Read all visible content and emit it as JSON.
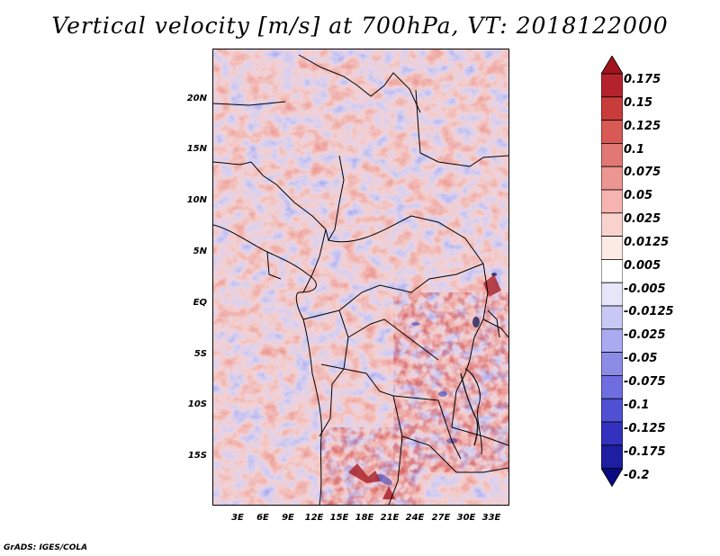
{
  "title": "Vertical velocity [m/s] at 700hPa, VT: 2018122000",
  "footer": "GrADS: IGES/COLA",
  "map": {
    "region": "Central Africa",
    "lat_labels": [
      "20N",
      "15N",
      "10N",
      "5N",
      "EQ",
      "5S",
      "10S",
      "15S"
    ],
    "lon_labels": [
      "3E",
      "6E",
      "9E",
      "12E",
      "15E",
      "18E",
      "21E",
      "24E",
      "27E",
      "30E",
      "33E"
    ]
  },
  "colorbar": {
    "labels": [
      "0.175",
      "0.15",
      "0.125",
      "0.1",
      "0.075",
      "0.05",
      "0.025",
      "0.0125",
      "0.005",
      "-0.005",
      "-0.0125",
      "-0.025",
      "-0.05",
      "-0.075",
      "-0.1",
      "-0.125",
      "-0.175",
      "-0.2"
    ],
    "colors": [
      "#a0141e",
      "#b4232d",
      "#c83c3c",
      "#d75a55",
      "#e17873",
      "#eb9691",
      "#f5b4af",
      "#fad2cd",
      "#fdebe6",
      "#ffffff",
      "#e6e6fa",
      "#c8c8f5",
      "#aaaaf0",
      "#8c8ce6",
      "#6e6ee1",
      "#5050d2",
      "#3232be",
      "#1e1ea0",
      "#0a0a82"
    ]
  }
}
